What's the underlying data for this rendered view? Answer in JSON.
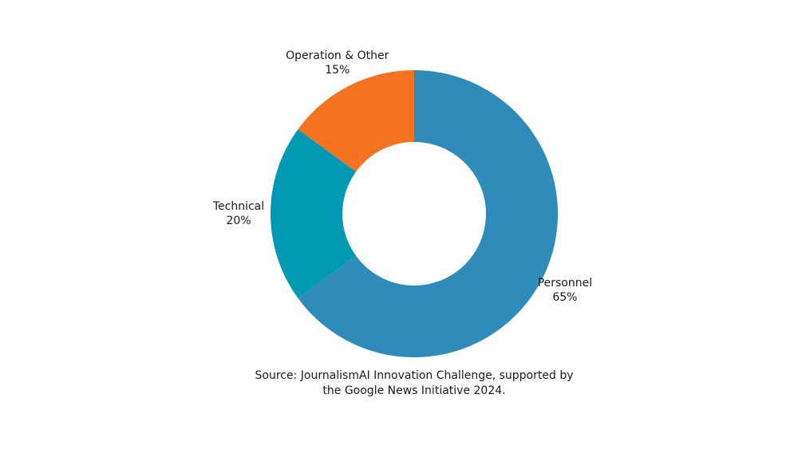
{
  "chart_data": {
    "type": "donut",
    "categories": [
      "Personnel",
      "Technical",
      "Operation & Other"
    ],
    "values": [
      65,
      20,
      15
    ],
    "value_labels": [
      "65%",
      "20%",
      "15%"
    ],
    "colors": [
      "#2e8bba",
      "#0099b4",
      "#f47321"
    ],
    "source": [
      "Source: JournalismAI Innovation Challenge, supported by",
      "the Google News Initiative 2024."
    ]
  }
}
